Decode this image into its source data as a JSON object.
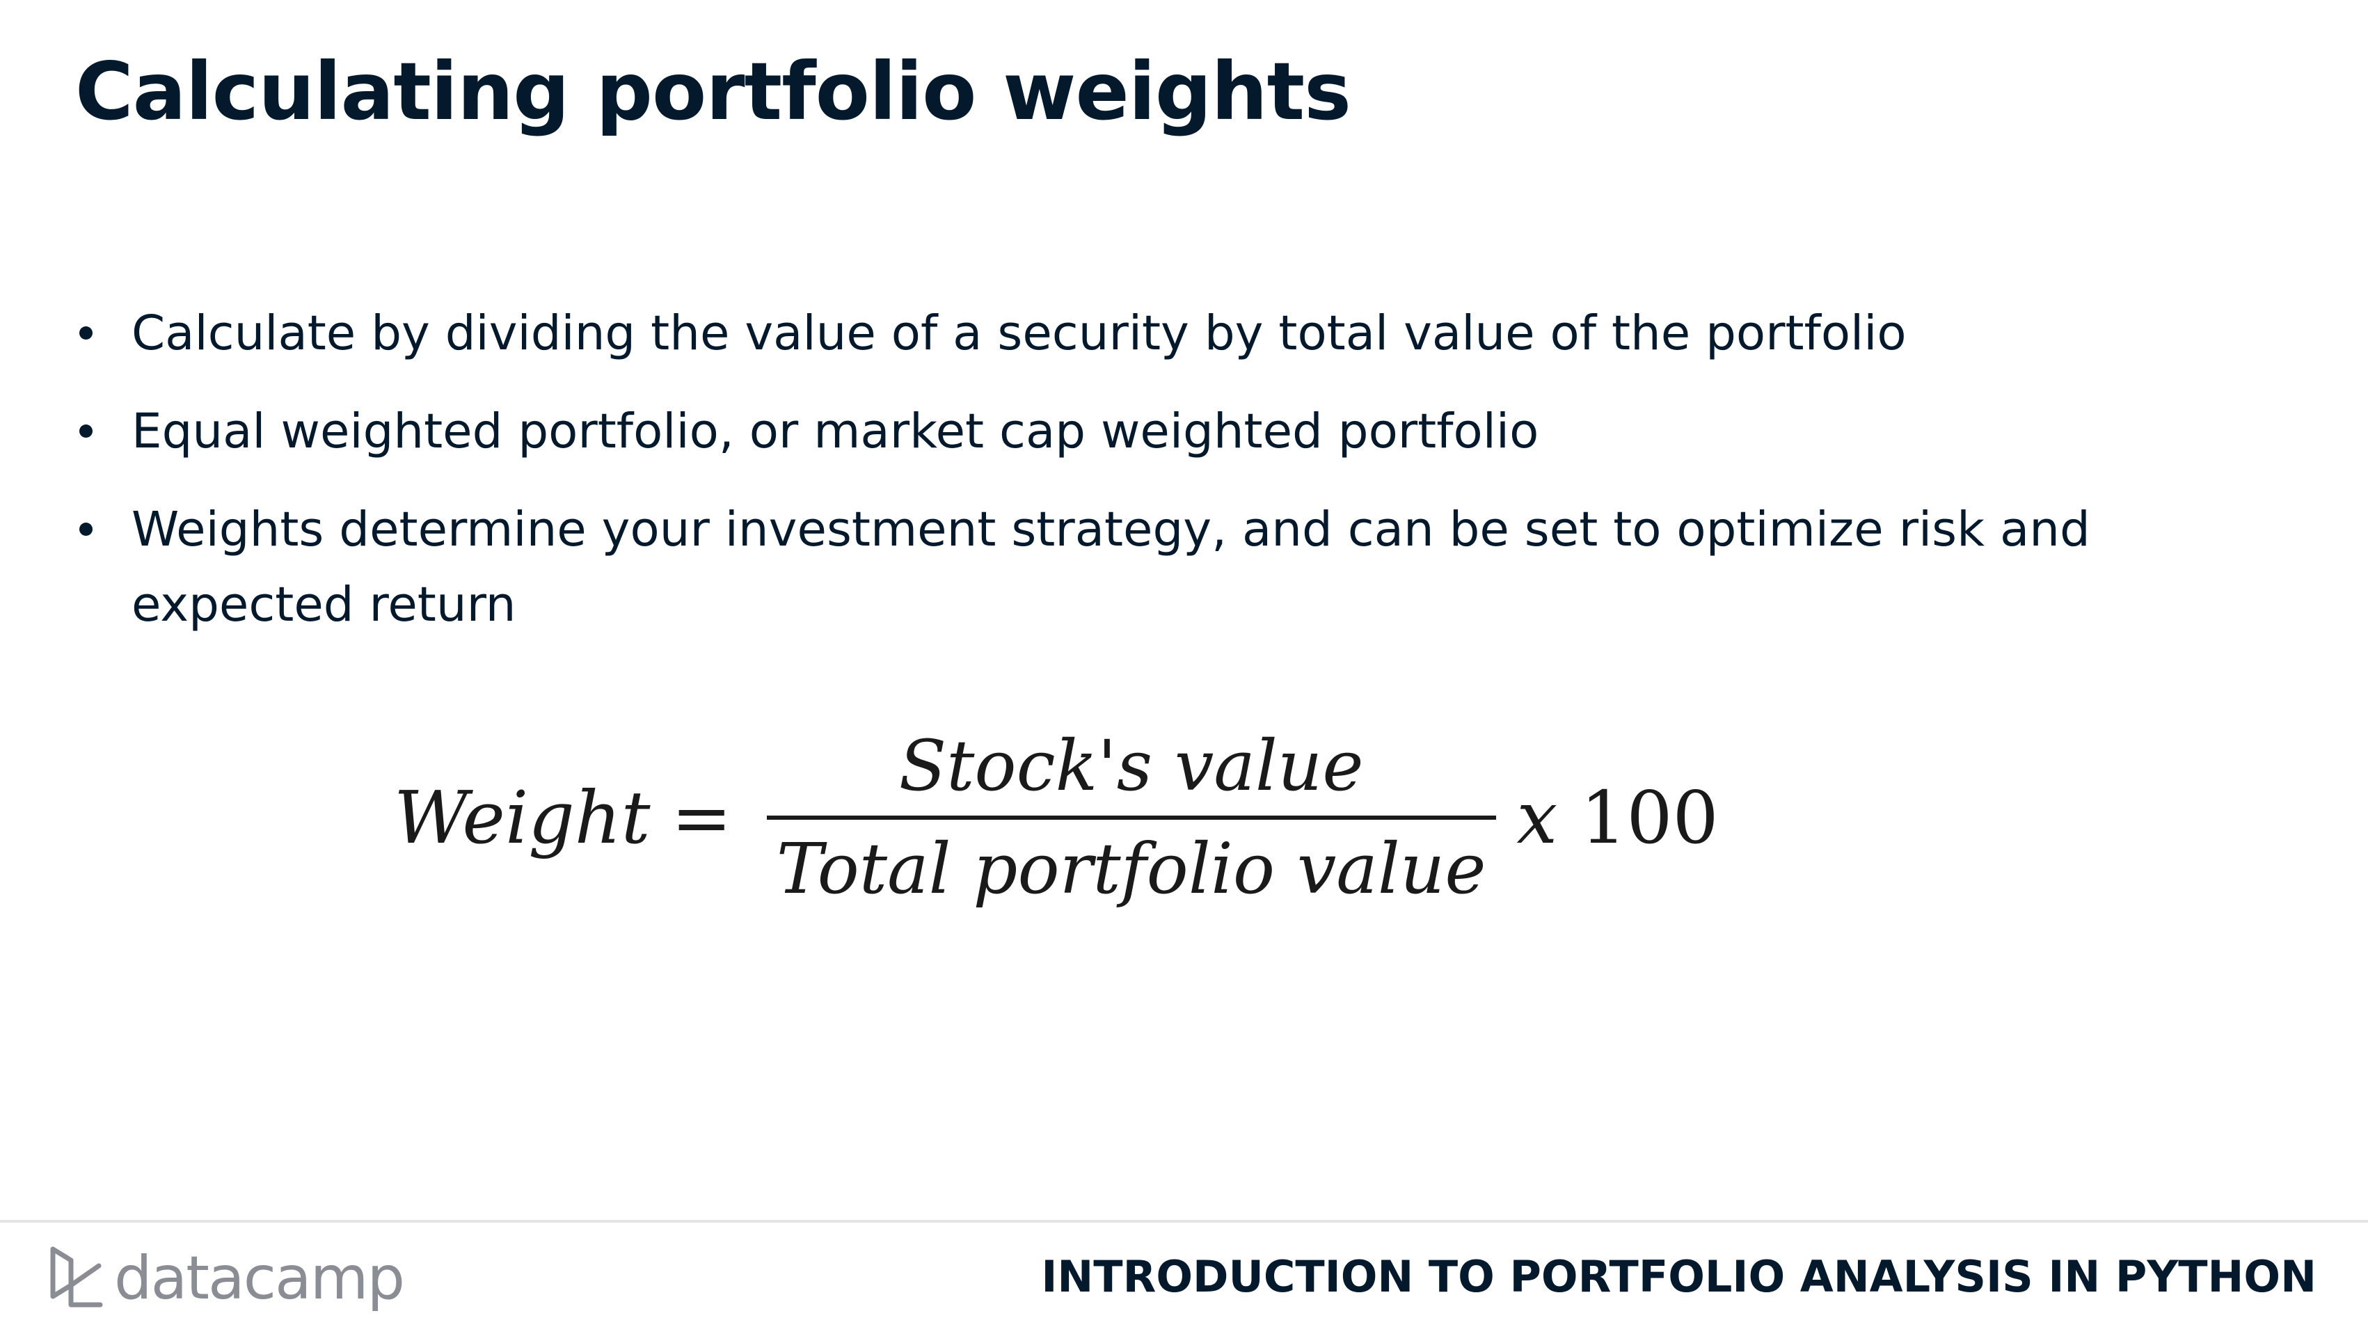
{
  "slide": {
    "title": "Calculating portfolio weights",
    "bullets": [
      "Calculate by dividing the value of a security by total value of the portfolio",
      "Equal weighted portfolio, or market cap weighted portfolio",
      "Weights determine your investment strategy, and can be set to optimize risk and expected return"
    ]
  },
  "formula": {
    "lhs": "Weight",
    "equals": "=",
    "numerator": "Stock's value",
    "denominator": "Total portfolio value",
    "multiplier_symbol": "x",
    "multiplier_value": "100"
  },
  "footer": {
    "brand": "datacamp",
    "course": "INTRODUCTION TO PORTFOLIO ANALYSIS IN PYTHON",
    "logo_icon": "datacamp-logo-icon"
  },
  "colors": {
    "text": "#05192d",
    "logo_gray": "#8a8e94",
    "divider": "#e5e5e5"
  }
}
